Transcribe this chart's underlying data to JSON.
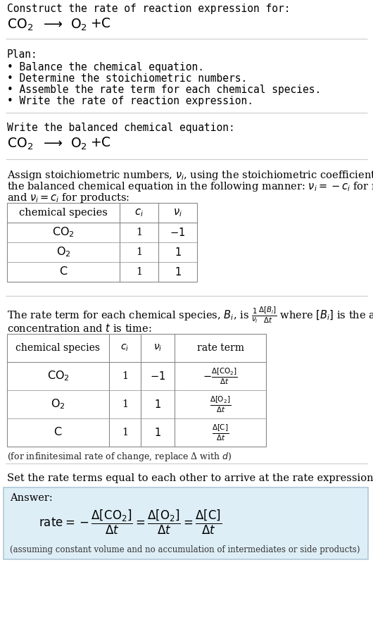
{
  "title_line1": "Construct the rate of reaction expression for:",
  "plan_header": "Plan:",
  "plan_items": [
    "• Balance the chemical equation.",
    "• Determine the stoichiometric numbers.",
    "• Assemble the rate term for each chemical species.",
    "• Write the rate of reaction expression."
  ],
  "balanced_header": "Write the balanced chemical equation:",
  "assign_line1": "Assign stoichiometric numbers, $\\nu_i$, using the stoichiometric coefficients, $c_i$, from",
  "assign_line2": "the balanced chemical equation in the following manner: $\\nu_i = -c_i$ for reactants",
  "assign_line3": "and $\\nu_i = c_i$ for products:",
  "table1_species": [
    "$\\mathrm{CO_2}$",
    "$\\mathrm{O_2}$",
    "C"
  ],
  "table1_ci": [
    "1",
    "1",
    "1"
  ],
  "table1_nui": [
    "−1",
    "1",
    "1"
  ],
  "rate_line1": "The rate term for each chemical species, $B_i$, is $\\frac{1}{\\nu_i}\\frac{\\Delta[B_i]}{\\Delta t}$ where $[B_i]$ is the amount",
  "rate_line2": "concentration and $t$ is time:",
  "table2_species": [
    "$\\mathrm{CO_2}$",
    "$\\mathrm{O_2}$",
    "C"
  ],
  "table2_ci": [
    "1",
    "1",
    "1"
  ],
  "table2_nui": [
    "−1",
    "1",
    "1"
  ],
  "table2_rate": [
    "$-\\frac{\\Delta[\\mathrm{CO_2}]}{\\Delta t}$",
    "$\\frac{\\Delta[\\mathrm{O_2}]}{\\Delta t}$",
    "$\\frac{\\Delta[\\mathrm{C}]}{\\Delta t}$"
  ],
  "infinitesimal_note": "(for infinitesimal rate of change, replace Δ with $d$)",
  "set_equal_text": "Set the rate terms equal to each other to arrive at the rate expression:",
  "answer_label": "Answer:",
  "answer_note": "(assuming constant volume and no accumulation of intermediates or side products)",
  "answer_box_color": "#deeef6",
  "answer_box_edge": "#aec8d8",
  "bg_color": "#ffffff",
  "divider_color": "#cccccc",
  "table_color": "#888888",
  "mono_font": "DejaVu Sans Mono",
  "serif_font": "DejaVu Serif",
  "base_fs": 10.5,
  "small_fs": 9.0,
  "big_fs": 13.5
}
